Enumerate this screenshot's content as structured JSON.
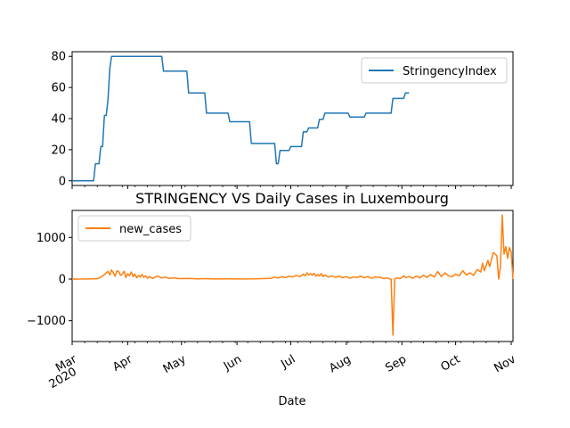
{
  "chart_data": [
    {
      "type": "line",
      "title": "",
      "xlabel": "",
      "ylabel": "",
      "x_range": [
        "2020-03-01",
        "2020-11-02"
      ],
      "ylim": [
        -3,
        83
      ],
      "yticks": [
        0,
        20,
        40,
        60,
        80
      ],
      "grid": false,
      "legend_position": "top-right",
      "series": [
        {
          "name": "StringencyIndex",
          "color": "#1f77b4",
          "points": [
            [
              "2020-03-01",
              0
            ],
            [
              "2020-03-13",
              0
            ],
            [
              "2020-03-14",
              11
            ],
            [
              "2020-03-16",
              11
            ],
            [
              "2020-03-17",
              22
            ],
            [
              "2020-03-18",
              22
            ],
            [
              "2020-03-19",
              42
            ],
            [
              "2020-03-20",
              42
            ],
            [
              "2020-03-21",
              52
            ],
            [
              "2020-03-22",
              72
            ],
            [
              "2020-03-23",
              80
            ],
            [
              "2020-04-20",
              80
            ],
            [
              "2020-04-21",
              70.5
            ],
            [
              "2020-05-04",
              70.5
            ],
            [
              "2020-05-05",
              56.5
            ],
            [
              "2020-05-14",
              56.5
            ],
            [
              "2020-05-15",
              43.5
            ],
            [
              "2020-05-27",
              43.5
            ],
            [
              "2020-05-28",
              38
            ],
            [
              "2020-06-08",
              38
            ],
            [
              "2020-06-09",
              24
            ],
            [
              "2020-06-22",
              24
            ],
            [
              "2020-06-23",
              11
            ],
            [
              "2020-06-24",
              11
            ],
            [
              "2020-06-25",
              19.5
            ],
            [
              "2020-06-30",
              19.5
            ],
            [
              "2020-07-01",
              22
            ],
            [
              "2020-07-07",
              22
            ],
            [
              "2020-07-08",
              31.5
            ],
            [
              "2020-07-10",
              31.5
            ],
            [
              "2020-07-11",
              34
            ],
            [
              "2020-07-16",
              34
            ],
            [
              "2020-07-17",
              39.5
            ],
            [
              "2020-07-19",
              39.5
            ],
            [
              "2020-07-20",
              43.5
            ],
            [
              "2020-08-02",
              43.5
            ],
            [
              "2020-08-03",
              41
            ],
            [
              "2020-08-11",
              41
            ],
            [
              "2020-08-12",
              43.5
            ],
            [
              "2020-08-26",
              43.5
            ],
            [
              "2020-08-27",
              53
            ],
            [
              "2020-09-02",
              53
            ],
            [
              "2020-09-03",
              56.5
            ],
            [
              "2020-09-05",
              56.5
            ]
          ]
        }
      ]
    },
    {
      "type": "line",
      "title": "STRINGENCY VS Daily Cases in Luxembourg",
      "xlabel": "Date",
      "ylabel": "",
      "x_range": [
        "2020-03-01",
        "2020-11-02"
      ],
      "ylim": [
        -1500,
        1650
      ],
      "yticks": [
        -1000,
        0,
        1000
      ],
      "x_ticks": [
        {
          "date": "2020-03-01",
          "label": "Mar",
          "sublabel": "2020"
        },
        {
          "date": "2020-04-01",
          "label": "Apr",
          "sublabel": ""
        },
        {
          "date": "2020-05-01",
          "label": "May",
          "sublabel": ""
        },
        {
          "date": "2020-06-01",
          "label": "Jun",
          "sublabel": ""
        },
        {
          "date": "2020-07-01",
          "label": "Jul",
          "sublabel": ""
        },
        {
          "date": "2020-08-01",
          "label": "Aug",
          "sublabel": ""
        },
        {
          "date": "2020-09-01",
          "label": "Sep",
          "sublabel": ""
        },
        {
          "date": "2020-10-01",
          "label": "Oct",
          "sublabel": ""
        },
        {
          "date": "2020-11-01",
          "label": "Nov",
          "sublabel": ""
        }
      ],
      "grid": false,
      "legend_position": "top-left",
      "series": [
        {
          "name": "new_cases",
          "color": "#ff7f0e",
          "points": [
            [
              "2020-03-01",
              0
            ],
            [
              "2020-03-10",
              2
            ],
            [
              "2020-03-15",
              10
            ],
            [
              "2020-03-17",
              45
            ],
            [
              "2020-03-19",
              110
            ],
            [
              "2020-03-21",
              185
            ],
            [
              "2020-03-22",
              100
            ],
            [
              "2020-03-23",
              220
            ],
            [
              "2020-03-24",
              150
            ],
            [
              "2020-03-25",
              70
            ],
            [
              "2020-03-26",
              200
            ],
            [
              "2020-03-27",
              180
            ],
            [
              "2020-03-28",
              90
            ],
            [
              "2020-03-29",
              120
            ],
            [
              "2020-03-30",
              190
            ],
            [
              "2020-03-31",
              40
            ],
            [
              "2020-04-01",
              130
            ],
            [
              "2020-04-02",
              80
            ],
            [
              "2020-04-03",
              170
            ],
            [
              "2020-04-04",
              60
            ],
            [
              "2020-04-05",
              120
            ],
            [
              "2020-04-06",
              30
            ],
            [
              "2020-04-07",
              90
            ],
            [
              "2020-04-08",
              50
            ],
            [
              "2020-04-09",
              110
            ],
            [
              "2020-04-10",
              40
            ],
            [
              "2020-04-11",
              80
            ],
            [
              "2020-04-12",
              20
            ],
            [
              "2020-04-13",
              60
            ],
            [
              "2020-04-15",
              15
            ],
            [
              "2020-04-16",
              45
            ],
            [
              "2020-04-18",
              70
            ],
            [
              "2020-04-20",
              25
            ],
            [
              "2020-04-22",
              50
            ],
            [
              "2020-04-24",
              15
            ],
            [
              "2020-04-27",
              30
            ],
            [
              "2020-04-30",
              10
            ],
            [
              "2020-05-05",
              15
            ],
            [
              "2020-05-10",
              5
            ],
            [
              "2020-05-15",
              10
            ],
            [
              "2020-05-20",
              3
            ],
            [
              "2020-05-25",
              8
            ],
            [
              "2020-06-01",
              2
            ],
            [
              "2020-06-10",
              4
            ],
            [
              "2020-06-15",
              10
            ],
            [
              "2020-06-20",
              20
            ],
            [
              "2020-06-22",
              45
            ],
            [
              "2020-06-24",
              25
            ],
            [
              "2020-06-26",
              60
            ],
            [
              "2020-06-28",
              35
            ],
            [
              "2020-06-30",
              70
            ],
            [
              "2020-07-02",
              50
            ],
            [
              "2020-07-04",
              90
            ],
            [
              "2020-07-06",
              60
            ],
            [
              "2020-07-08",
              120
            ],
            [
              "2020-07-09",
              80
            ],
            [
              "2020-07-10",
              150
            ],
            [
              "2020-07-11",
              100
            ],
            [
              "2020-07-12",
              130
            ],
            [
              "2020-07-13",
              90
            ],
            [
              "2020-07-14",
              140
            ],
            [
              "2020-07-15",
              70
            ],
            [
              "2020-07-16",
              110
            ],
            [
              "2020-07-17",
              80
            ],
            [
              "2020-07-18",
              130
            ],
            [
              "2020-07-19",
              60
            ],
            [
              "2020-07-20",
              100
            ],
            [
              "2020-07-22",
              50
            ],
            [
              "2020-07-24",
              80
            ],
            [
              "2020-07-26",
              40
            ],
            [
              "2020-07-28",
              70
            ],
            [
              "2020-07-30",
              30
            ],
            [
              "2020-08-01",
              60
            ],
            [
              "2020-08-03",
              20
            ],
            [
              "2020-08-05",
              50
            ],
            [
              "2020-08-07",
              40
            ],
            [
              "2020-08-09",
              70
            ],
            [
              "2020-08-11",
              30
            ],
            [
              "2020-08-13",
              60
            ],
            [
              "2020-08-15",
              20
            ],
            [
              "2020-08-17",
              50
            ],
            [
              "2020-08-20",
              40
            ],
            [
              "2020-08-22",
              10
            ],
            [
              "2020-08-24",
              30
            ],
            [
              "2020-08-25",
              5
            ],
            [
              "2020-08-26",
              0
            ],
            [
              "2020-08-27",
              -1350
            ],
            [
              "2020-08-28",
              0
            ],
            [
              "2020-08-29",
              30
            ],
            [
              "2020-08-31",
              10
            ],
            [
              "2020-09-01",
              40
            ],
            [
              "2020-09-02",
              80
            ],
            [
              "2020-09-03",
              40
            ],
            [
              "2020-09-05",
              60
            ],
            [
              "2020-09-07",
              20
            ],
            [
              "2020-09-09",
              70
            ],
            [
              "2020-09-11",
              30
            ],
            [
              "2020-09-13",
              90
            ],
            [
              "2020-09-15",
              40
            ],
            [
              "2020-09-17",
              110
            ],
            [
              "2020-09-19",
              50
            ],
            [
              "2020-09-21",
              180
            ],
            [
              "2020-09-23",
              60
            ],
            [
              "2020-09-25",
              150
            ],
            [
              "2020-09-27",
              80
            ],
            [
              "2020-09-29",
              60
            ],
            [
              "2020-10-01",
              120
            ],
            [
              "2020-10-03",
              80
            ],
            [
              "2020-10-05",
              200
            ],
            [
              "2020-10-07",
              100
            ],
            [
              "2020-10-09",
              150
            ],
            [
              "2020-10-11",
              90
            ],
            [
              "2020-10-13",
              230
            ],
            [
              "2020-10-15",
              170
            ],
            [
              "2020-10-16",
              380
            ],
            [
              "2020-10-17",
              200
            ],
            [
              "2020-10-19",
              450
            ],
            [
              "2020-10-20",
              300
            ],
            [
              "2020-10-22",
              640
            ],
            [
              "2020-10-24",
              560
            ],
            [
              "2020-10-25",
              0
            ],
            [
              "2020-10-26",
              300
            ],
            [
              "2020-10-27",
              1540
            ],
            [
              "2020-10-28",
              600
            ],
            [
              "2020-10-29",
              780
            ],
            [
              "2020-10-30",
              500
            ],
            [
              "2020-10-31",
              760
            ],
            [
              "2020-11-01",
              650
            ],
            [
              "2020-11-02",
              0
            ]
          ]
        }
      ]
    }
  ]
}
